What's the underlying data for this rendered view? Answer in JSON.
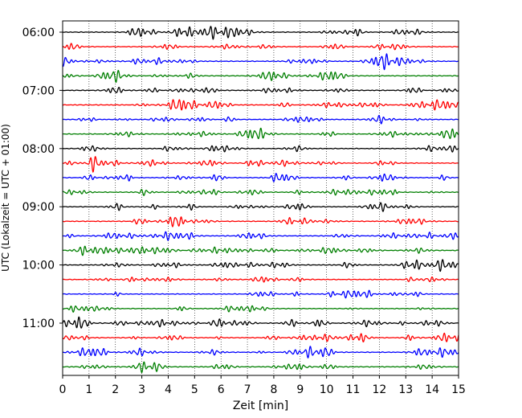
{
  "chart_data": {
    "type": "line",
    "title": "",
    "xlabel": "Zeit  [min]",
    "ylabel": "UTC (Lokalzeit = UTC + 01:00)",
    "xlim": [
      0,
      15
    ],
    "x_ticks": [
      0,
      1,
      2,
      3,
      4,
      5,
      6,
      7,
      8,
      9,
      10,
      11,
      12,
      13,
      14,
      15
    ],
    "y_tick_labels": [
      "06:00",
      "07:00",
      "08:00",
      "09:00",
      "10:00",
      "11:00"
    ],
    "y_tick_trace_index": [
      0,
      4,
      8,
      12,
      16,
      20
    ],
    "trace_start_times": [
      "06:00",
      "06:15",
      "06:30",
      "06:45",
      "07:00",
      "07:15",
      "07:30",
      "07:45",
      "08:00",
      "08:15",
      "08:30",
      "08:45",
      "09:00",
      "09:15",
      "09:30",
      "09:45",
      "10:00",
      "10:15",
      "10:30",
      "10:45",
      "11:00",
      "11:15",
      "11:30",
      "11:45"
    ],
    "trace_colors": [
      "#000000",
      "#ff0000",
      "#0000ff",
      "#007f00"
    ],
    "grid_x": true,
    "legend": false
  }
}
